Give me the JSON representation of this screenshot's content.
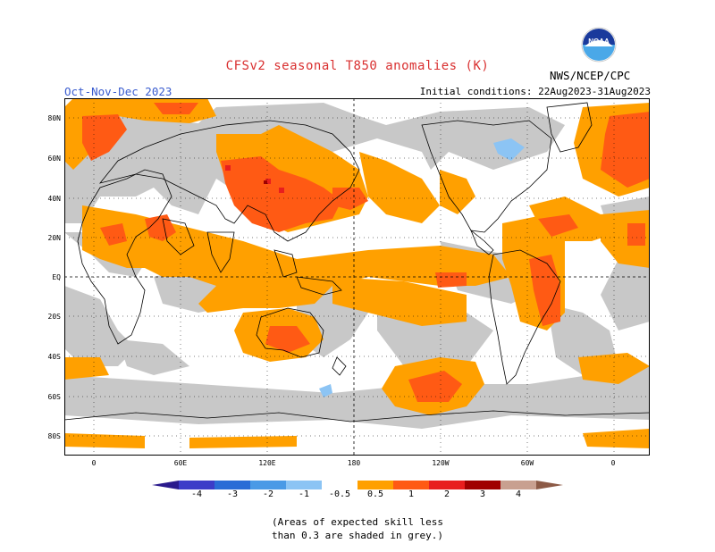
{
  "header": {
    "title": "CFSv2 seasonal T850 anomalies (K)",
    "period": "Oct-Nov-Dec 2023",
    "initial_conditions": "Initial conditions: 22Aug2023-31Aug2023",
    "agency": "NWS/NCEP/CPC",
    "logo_text": "NOAA"
  },
  "map": {
    "lat_labels": [
      "80N",
      "60N",
      "40N",
      "20N",
      "EQ",
      "20S",
      "40S",
      "60S",
      "80S"
    ],
    "lon_labels": [
      "0",
      "60E",
      "120E",
      "180",
      "120W",
      "60W",
      "0"
    ]
  },
  "colorbar": {
    "labels": [
      "-4",
      "-3",
      "-2",
      "-1",
      "-0.5",
      "0.5",
      "1",
      "2",
      "3",
      "4"
    ],
    "colors": {
      "neg4": "#2a1a8c",
      "neg3": "#3c3cc8",
      "neg2": "#2a6cd6",
      "neg1": "#4a9ae6",
      "neg05": "#8cc4f4",
      "neutral": "#ffffff",
      "pos05": "#ffa000",
      "pos1": "#ff5a14",
      "pos2": "#e81e1e",
      "pos3": "#a00000",
      "pos4": "#c8a090",
      "pos4plus": "#8c5a46",
      "noskill": "#c8c8c8"
    }
  },
  "footnote": {
    "line1": "(Areas of expected skill less",
    "line2": "than 0.3 are shaded in grey.)"
  }
}
